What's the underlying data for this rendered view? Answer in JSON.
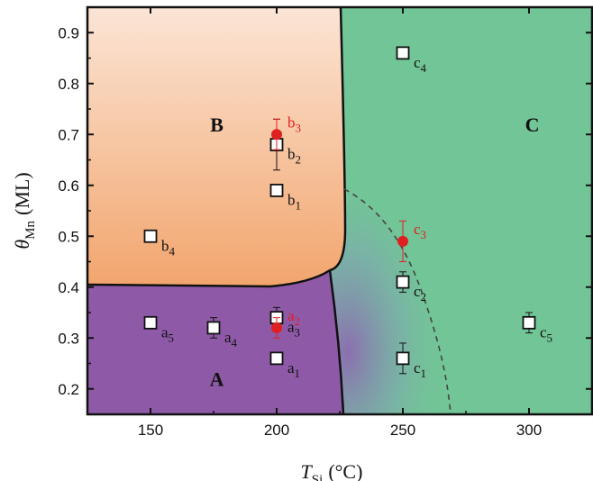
{
  "chart_data": {
    "type": "scatter",
    "title": "",
    "xlabel": "T_Si (°C)",
    "ylabel": "θ_Mn (ML)",
    "xlabel_parts": {
      "symbol": "T",
      "sub": "Si",
      "unit": "(°C)"
    },
    "ylabel_parts": {
      "symbol": "θ",
      "sub": "Mn",
      "unit": "(ML)"
    },
    "xlim": [
      125,
      325
    ],
    "ylim": [
      0.15,
      0.95
    ],
    "x_ticks": [
      150,
      200,
      250,
      300
    ],
    "y_ticks": [
      0.2,
      0.3,
      0.4,
      0.5,
      0.6,
      0.7,
      0.8,
      0.9
    ],
    "regions": [
      {
        "label": "A",
        "color": "#8e5aa8",
        "label_at": [
          162,
          0.22
        ]
      },
      {
        "label": "B",
        "color": "#f2a873",
        "label_at": [
          162,
          0.72
        ]
      },
      {
        "label": "C",
        "color": "#72c596",
        "label_at": [
          287,
          0.72
        ]
      }
    ],
    "series": [
      {
        "marker": "open-square",
        "color": "#111111",
        "points": [
          {
            "label": "a",
            "sub": "1",
            "x": 200,
            "y": 0.26
          },
          {
            "label": "a",
            "sub": "3",
            "x": 200,
            "y": 0.34,
            "err": 0.02
          },
          {
            "label": "a",
            "sub": "4",
            "x": 175,
            "y": 0.32,
            "err": 0.02
          },
          {
            "label": "a",
            "sub": "5",
            "x": 150,
            "y": 0.33
          },
          {
            "label": "b",
            "sub": "1",
            "x": 200,
            "y": 0.59
          },
          {
            "label": "b",
            "sub": "2",
            "x": 200,
            "y": 0.68,
            "err": 0.05
          },
          {
            "label": "b",
            "sub": "4",
            "x": 150,
            "y": 0.5
          },
          {
            "label": "c",
            "sub": "1",
            "x": 250,
            "y": 0.26,
            "err": 0.03
          },
          {
            "label": "c",
            "sub": "2",
            "x": 250,
            "y": 0.41,
            "err": 0.02
          },
          {
            "label": "c",
            "sub": "4",
            "x": 250,
            "y": 0.86
          },
          {
            "label": "c",
            "sub": "5",
            "x": 300,
            "y": 0.33,
            "err": 0.02
          }
        ]
      },
      {
        "marker": "filled-circle",
        "color": "#e02020",
        "points": [
          {
            "label": "a",
            "sub": "2",
            "x": 200,
            "y": 0.32,
            "err": 0.02
          },
          {
            "label": "b",
            "sub": "3",
            "x": 200,
            "y": 0.7,
            "err": 0.03
          },
          {
            "label": "c",
            "sub": "3",
            "x": 250,
            "y": 0.49,
            "err": 0.04
          }
        ]
      }
    ],
    "dashed_boundary": true,
    "grid": false,
    "legend": "none"
  }
}
